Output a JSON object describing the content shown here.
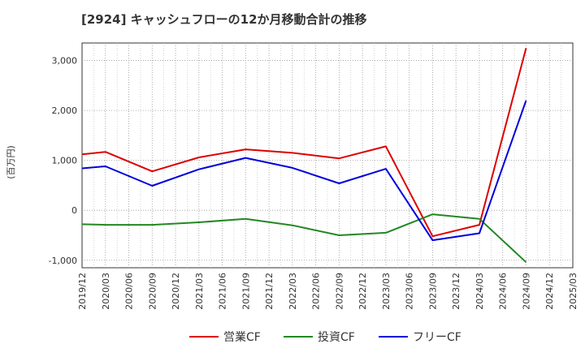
{
  "chart_data": {
    "type": "line",
    "title": "[2924]  キャッシュフローの12か月移動合計の推移",
    "ylabel": "(百万円)",
    "xlabel": "",
    "ylim": [
      -1150,
      3350
    ],
    "yticks": [
      -1000,
      0,
      1000,
      2000,
      3000
    ],
    "ytick_labels": [
      "-1,000",
      "0",
      "1,000",
      "2,000",
      "3,000"
    ],
    "x": [
      "2019/12",
      "2020/03",
      "2020/06",
      "2020/09",
      "2020/12",
      "2021/03",
      "2021/06",
      "2021/09",
      "2021/12",
      "2022/03",
      "2022/06",
      "2022/09",
      "2022/12",
      "2023/03",
      "2023/06",
      "2023/09",
      "2023/12",
      "2024/03",
      "2024/06",
      "2024/09",
      "2024/12",
      "2025/03"
    ],
    "grid": true,
    "legend_position": "bottom",
    "series": [
      {
        "name": "営業CF",
        "color": "#dd0000",
        "values": [
          1120,
          1170,
          null,
          780,
          null,
          1060,
          null,
          1220,
          null,
          1150,
          null,
          1040,
          null,
          1280,
          null,
          -520,
          null,
          -290,
          null,
          3250,
          null,
          null
        ]
      },
      {
        "name": "投資CF",
        "color": "#228822",
        "values": [
          -280,
          -290,
          null,
          -290,
          null,
          -240,
          null,
          -170,
          null,
          -300,
          null,
          -500,
          null,
          -450,
          null,
          -80,
          null,
          -170,
          null,
          -1040,
          null,
          null
        ]
      },
      {
        "name": "フリーCF",
        "color": "#0000dd",
        "values": [
          840,
          880,
          null,
          490,
          null,
          820,
          null,
          1050,
          null,
          850,
          null,
          540,
          null,
          830,
          null,
          -600,
          null,
          -460,
          null,
          2200,
          null,
          null
        ]
      }
    ]
  }
}
